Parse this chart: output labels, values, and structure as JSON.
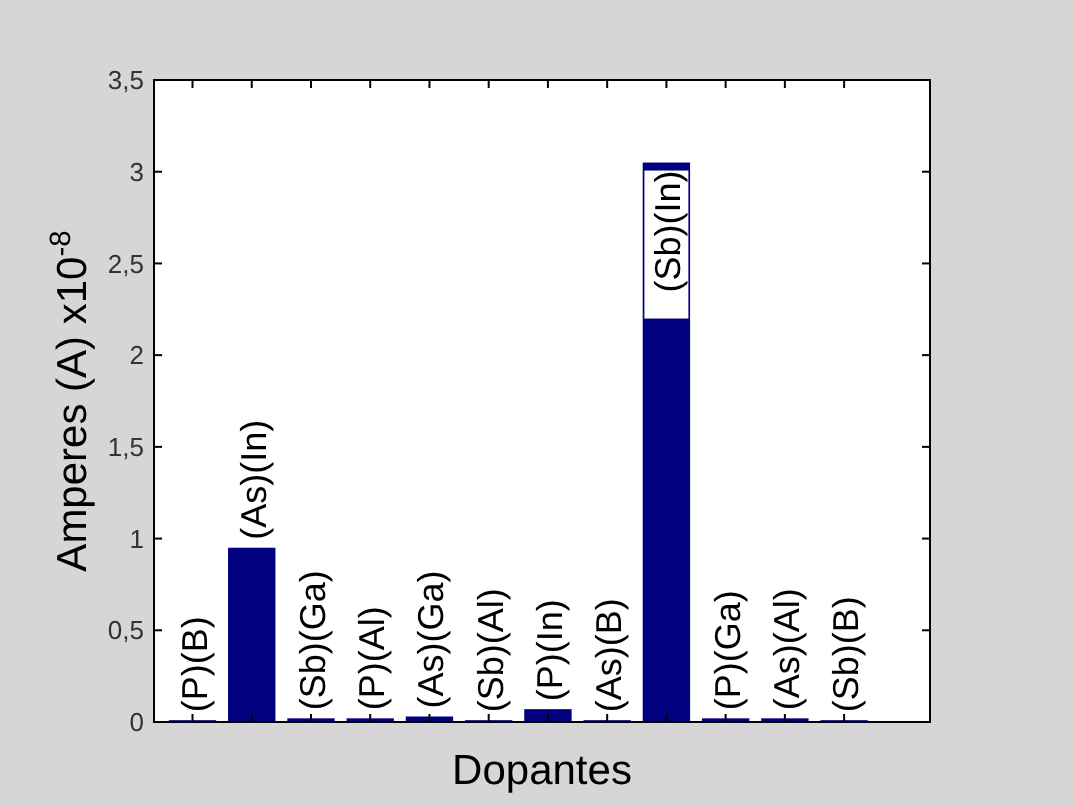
{
  "chart_data": {
    "type": "bar",
    "xlabel": "Dopantes",
    "ylabel": "Amperes (A) x10$^{-8}$",
    "categories": [
      "(P)(B)",
      "(As)(In)",
      "(Sb)(Ga)",
      "(P)(Al)",
      "(As)(Ga)",
      "(Sb)(Al)",
      "(P)(In)",
      "(As)(B)",
      "(Sb)(In)",
      "(P)(Ga)",
      "(As)(Al)",
      "(Sb)(B)"
    ],
    "values": [
      0.01,
      0.95,
      0.02,
      0.02,
      0.03,
      0.01,
      0.07,
      0.01,
      3.05,
      0.02,
      0.02,
      0.01
    ],
    "color": "#000080",
    "ylim": [
      0,
      3.5
    ],
    "yticks": [
      0,
      {
        "value": 0.5,
        "label": "0,5"
      },
      1,
      {
        "value": 1.5,
        "label": "1,5"
      },
      2,
      {
        "value": 2.5,
        "label": "2,5"
      },
      3,
      {
        "value": 3.5,
        "label": "3,5"
      }
    ],
    "grid": false
  }
}
